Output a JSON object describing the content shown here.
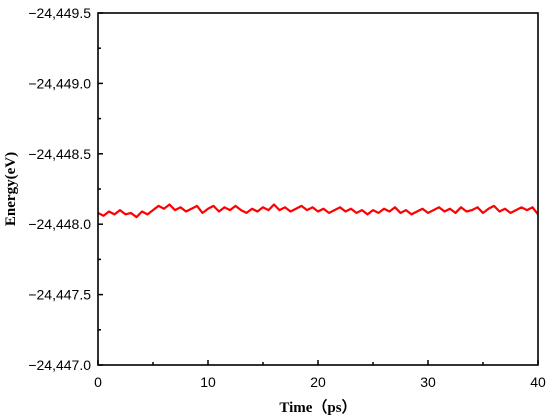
{
  "chart_data": {
    "type": "line",
    "xlabel": "Time（ps）",
    "ylabel": "Energy(eV)",
    "xlim": [
      0,
      40
    ],
    "ylim": [
      -24449.5,
      -24447.0
    ],
    "y_reversed": true,
    "x_ticks": [
      0,
      10,
      20,
      30,
      40
    ],
    "x_tick_labels": [
      "0",
      "10",
      "20",
      "30",
      "40"
    ],
    "y_ticks": [
      -24449.5,
      -24449.0,
      -24448.5,
      -24448.0,
      -24447.5,
      -24447.0
    ],
    "y_tick_labels": [
      "−24,449.5",
      "−24,449.0",
      "−24,448.5",
      "−24,448.0",
      "−24,447.5",
      "−24,447.0"
    ],
    "grid": false,
    "legend": "none",
    "series": [
      {
        "color": "#ff0000",
        "x": [
          0,
          0.5,
          1,
          1.5,
          2,
          2.5,
          3,
          3.5,
          4,
          4.5,
          5,
          5.5,
          6,
          6.5,
          7,
          7.5,
          8,
          8.5,
          9,
          9.5,
          10,
          10.5,
          11,
          11.5,
          12,
          12.5,
          13,
          13.5,
          14,
          14.5,
          15,
          15.5,
          16,
          16.5,
          17,
          17.5,
          18,
          18.5,
          19,
          19.5,
          20,
          20.5,
          21,
          21.5,
          22,
          22.5,
          23,
          23.5,
          24,
          24.5,
          25,
          25.5,
          26,
          26.5,
          27,
          27.5,
          28,
          28.5,
          29,
          29.5,
          30,
          30.5,
          31,
          31.5,
          32,
          32.5,
          33,
          33.5,
          34,
          34.5,
          35,
          35.5,
          36,
          36.5,
          37,
          37.5,
          38,
          38.5,
          39,
          39.5,
          40
        ],
        "y": [
          -24448.08,
          -24448.06,
          -24448.09,
          -24448.07,
          -24448.1,
          -24448.07,
          -24448.08,
          -24448.05,
          -24448.09,
          -24448.07,
          -24448.1,
          -24448.13,
          -24448.11,
          -24448.14,
          -24448.1,
          -24448.12,
          -24448.09,
          -24448.11,
          -24448.13,
          -24448.08,
          -24448.11,
          -24448.13,
          -24448.09,
          -24448.12,
          -24448.1,
          -24448.13,
          -24448.1,
          -24448.08,
          -24448.11,
          -24448.09,
          -24448.12,
          -24448.1,
          -24448.14,
          -24448.1,
          -24448.12,
          -24448.09,
          -24448.11,
          -24448.13,
          -24448.1,
          -24448.12,
          -24448.09,
          -24448.11,
          -24448.08,
          -24448.1,
          -24448.12,
          -24448.09,
          -24448.11,
          -24448.08,
          -24448.1,
          -24448.07,
          -24448.1,
          -24448.08,
          -24448.11,
          -24448.09,
          -24448.12,
          -24448.08,
          -24448.1,
          -24448.07,
          -24448.09,
          -24448.11,
          -24448.08,
          -24448.1,
          -24448.12,
          -24448.09,
          -24448.11,
          -24448.08,
          -24448.12,
          -24448.09,
          -24448.1,
          -24448.12,
          -24448.08,
          -24448.11,
          -24448.13,
          -24448.09,
          -24448.11,
          -24448.08,
          -24448.1,
          -24448.12,
          -24448.1,
          -24448.12,
          -24448.07
        ]
      }
    ]
  }
}
